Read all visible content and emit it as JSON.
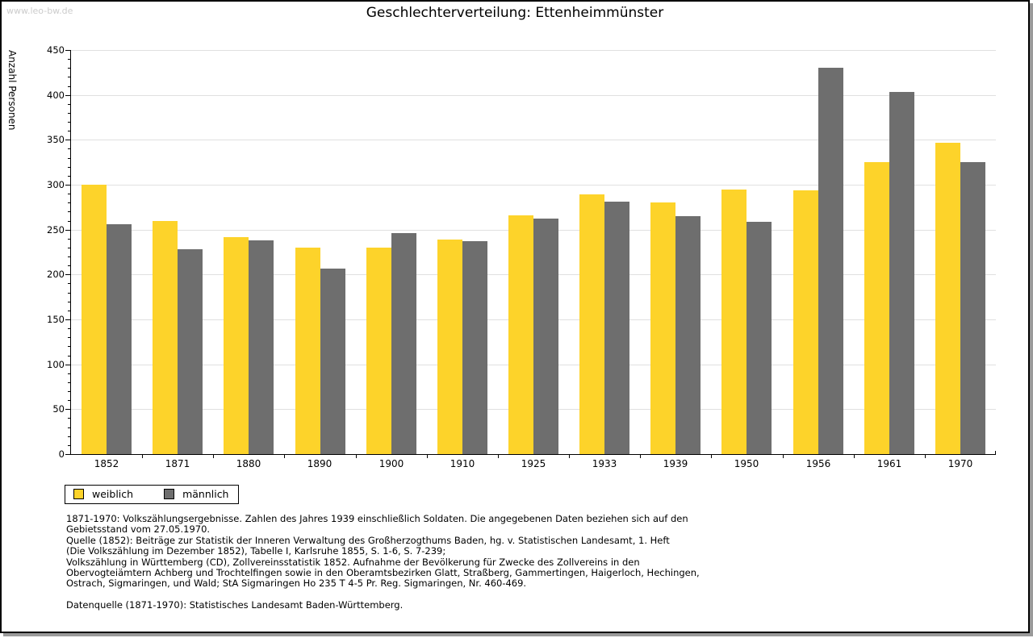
{
  "watermark": "www.leo-bw.de",
  "header": {
    "title": "Geschlechterverteilung: Ettenheimmünster"
  },
  "legend": {
    "items": [
      {
        "label": "weiblich",
        "color": "#fdd32a"
      },
      {
        "label": "männlich",
        "color": "#6e6e6e"
      }
    ]
  },
  "notes": {
    "source_text": "1871-1970: Volkszählungsergebnisse. Zahlen des Jahres 1939 einschließlich Soldaten. Die angegebenen Daten beziehen sich auf den\nGebietsstand vom 27.05.1970.\nQuelle (1852): Beiträge zur Statistik der Inneren Verwaltung des Großherzogthums Baden, hg. v. Statistischen Landesamt, 1. Heft\n(Die Volkszählung im Dezember 1852), Tabelle I, Karlsruhe 1855, S. 1-6, S. 7-239;\nVolkszählung in Württemberg (CD), Zollvereinsstatistik 1852. Aufnahme der Bevölkerung für Zwecke des Zollvereins in den\nObervogteiämtern Achberg und Trochtelfingen sowie in den Oberamtsbezirken Glatt, Straßberg, Gammertingen, Haigerloch, Hechingen,\nOstrach, Sigmaringen, und Wald; StA Sigmaringen Ho 235 T 4-5 Pr. Reg. Sigmaringen, Nr. 460-469.",
    "data_source": "Datenquelle (1871-1970): Statistisches Landesamt Baden-Württemberg."
  },
  "colors": {
    "female": "#fdd32a",
    "male": "#6e6e6e",
    "grid": "#e0e0e0",
    "watermark": "#cccccc"
  },
  "chart_data": {
    "type": "bar",
    "title": "Geschlechterverteilung: Ettenheimmünster",
    "ylabel": "Anzahl Personen",
    "xlabel": "",
    "categories": [
      "1852",
      "1871",
      "1880",
      "1890",
      "1900",
      "1910",
      "1925",
      "1933",
      "1939",
      "1950",
      "1956",
      "1961",
      "1970"
    ],
    "series": [
      {
        "name": "weiblich",
        "color": "#fdd32a",
        "values": [
          300,
          260,
          242,
          230,
          230,
          239,
          266,
          289,
          280,
          295,
          294,
          325,
          347
        ]
      },
      {
        "name": "männlich",
        "color": "#6e6e6e",
        "values": [
          256,
          228,
          238,
          207,
          246,
          237,
          262,
          281,
          265,
          259,
          430,
          403,
          325
        ]
      }
    ],
    "ylim": [
      0,
      450
    ],
    "ytick_interval": 50,
    "minor_tick_interval": 10,
    "grid": true,
    "legend_position": "bottom-left"
  }
}
